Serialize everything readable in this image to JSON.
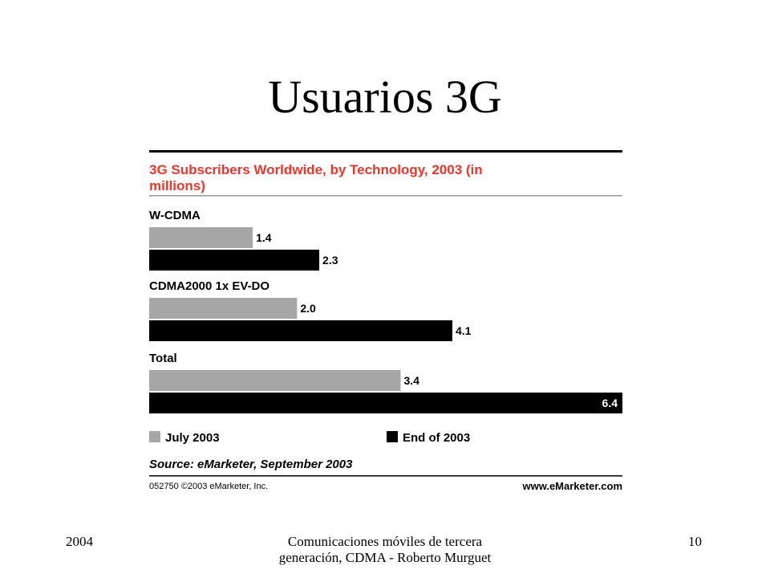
{
  "slide": {
    "title": "Usuarios 3G",
    "footer_left": "2004",
    "footer_center": "Comunicaciones móviles de tercera generación, CDMA - Roberto Murguet",
    "footer_right": "10"
  },
  "colors": {
    "accent": "#e8382e",
    "series_july": "#a6a6a6",
    "series_end": "#000000"
  },
  "chart_data": {
    "type": "bar",
    "orientation": "horizontal",
    "title_lines": [
      "3G Subscribers Worldwide, by Technology, 2003 (in",
      "millions)"
    ],
    "categories": [
      "W-CDMA",
      "CDMA2000 1x EV-DO",
      "Total"
    ],
    "series": [
      {
        "name": "July 2003",
        "values": [
          1.4,
          2.0,
          3.4
        ]
      },
      {
        "name": "End of 2003",
        "values": [
          2.3,
          4.1,
          6.4
        ]
      }
    ],
    "data_labels": [
      [
        "1.4",
        "2.3"
      ],
      [
        "2.0",
        "4.1"
      ],
      [
        "3.4",
        "6.4"
      ]
    ],
    "xlim": [
      0,
      6.4
    ],
    "legend_position": "bottom",
    "source": "Source: eMarketer, September 2003",
    "code": "052750 ©2003 eMarketer, Inc.",
    "website": "www.eMarketer.com"
  }
}
